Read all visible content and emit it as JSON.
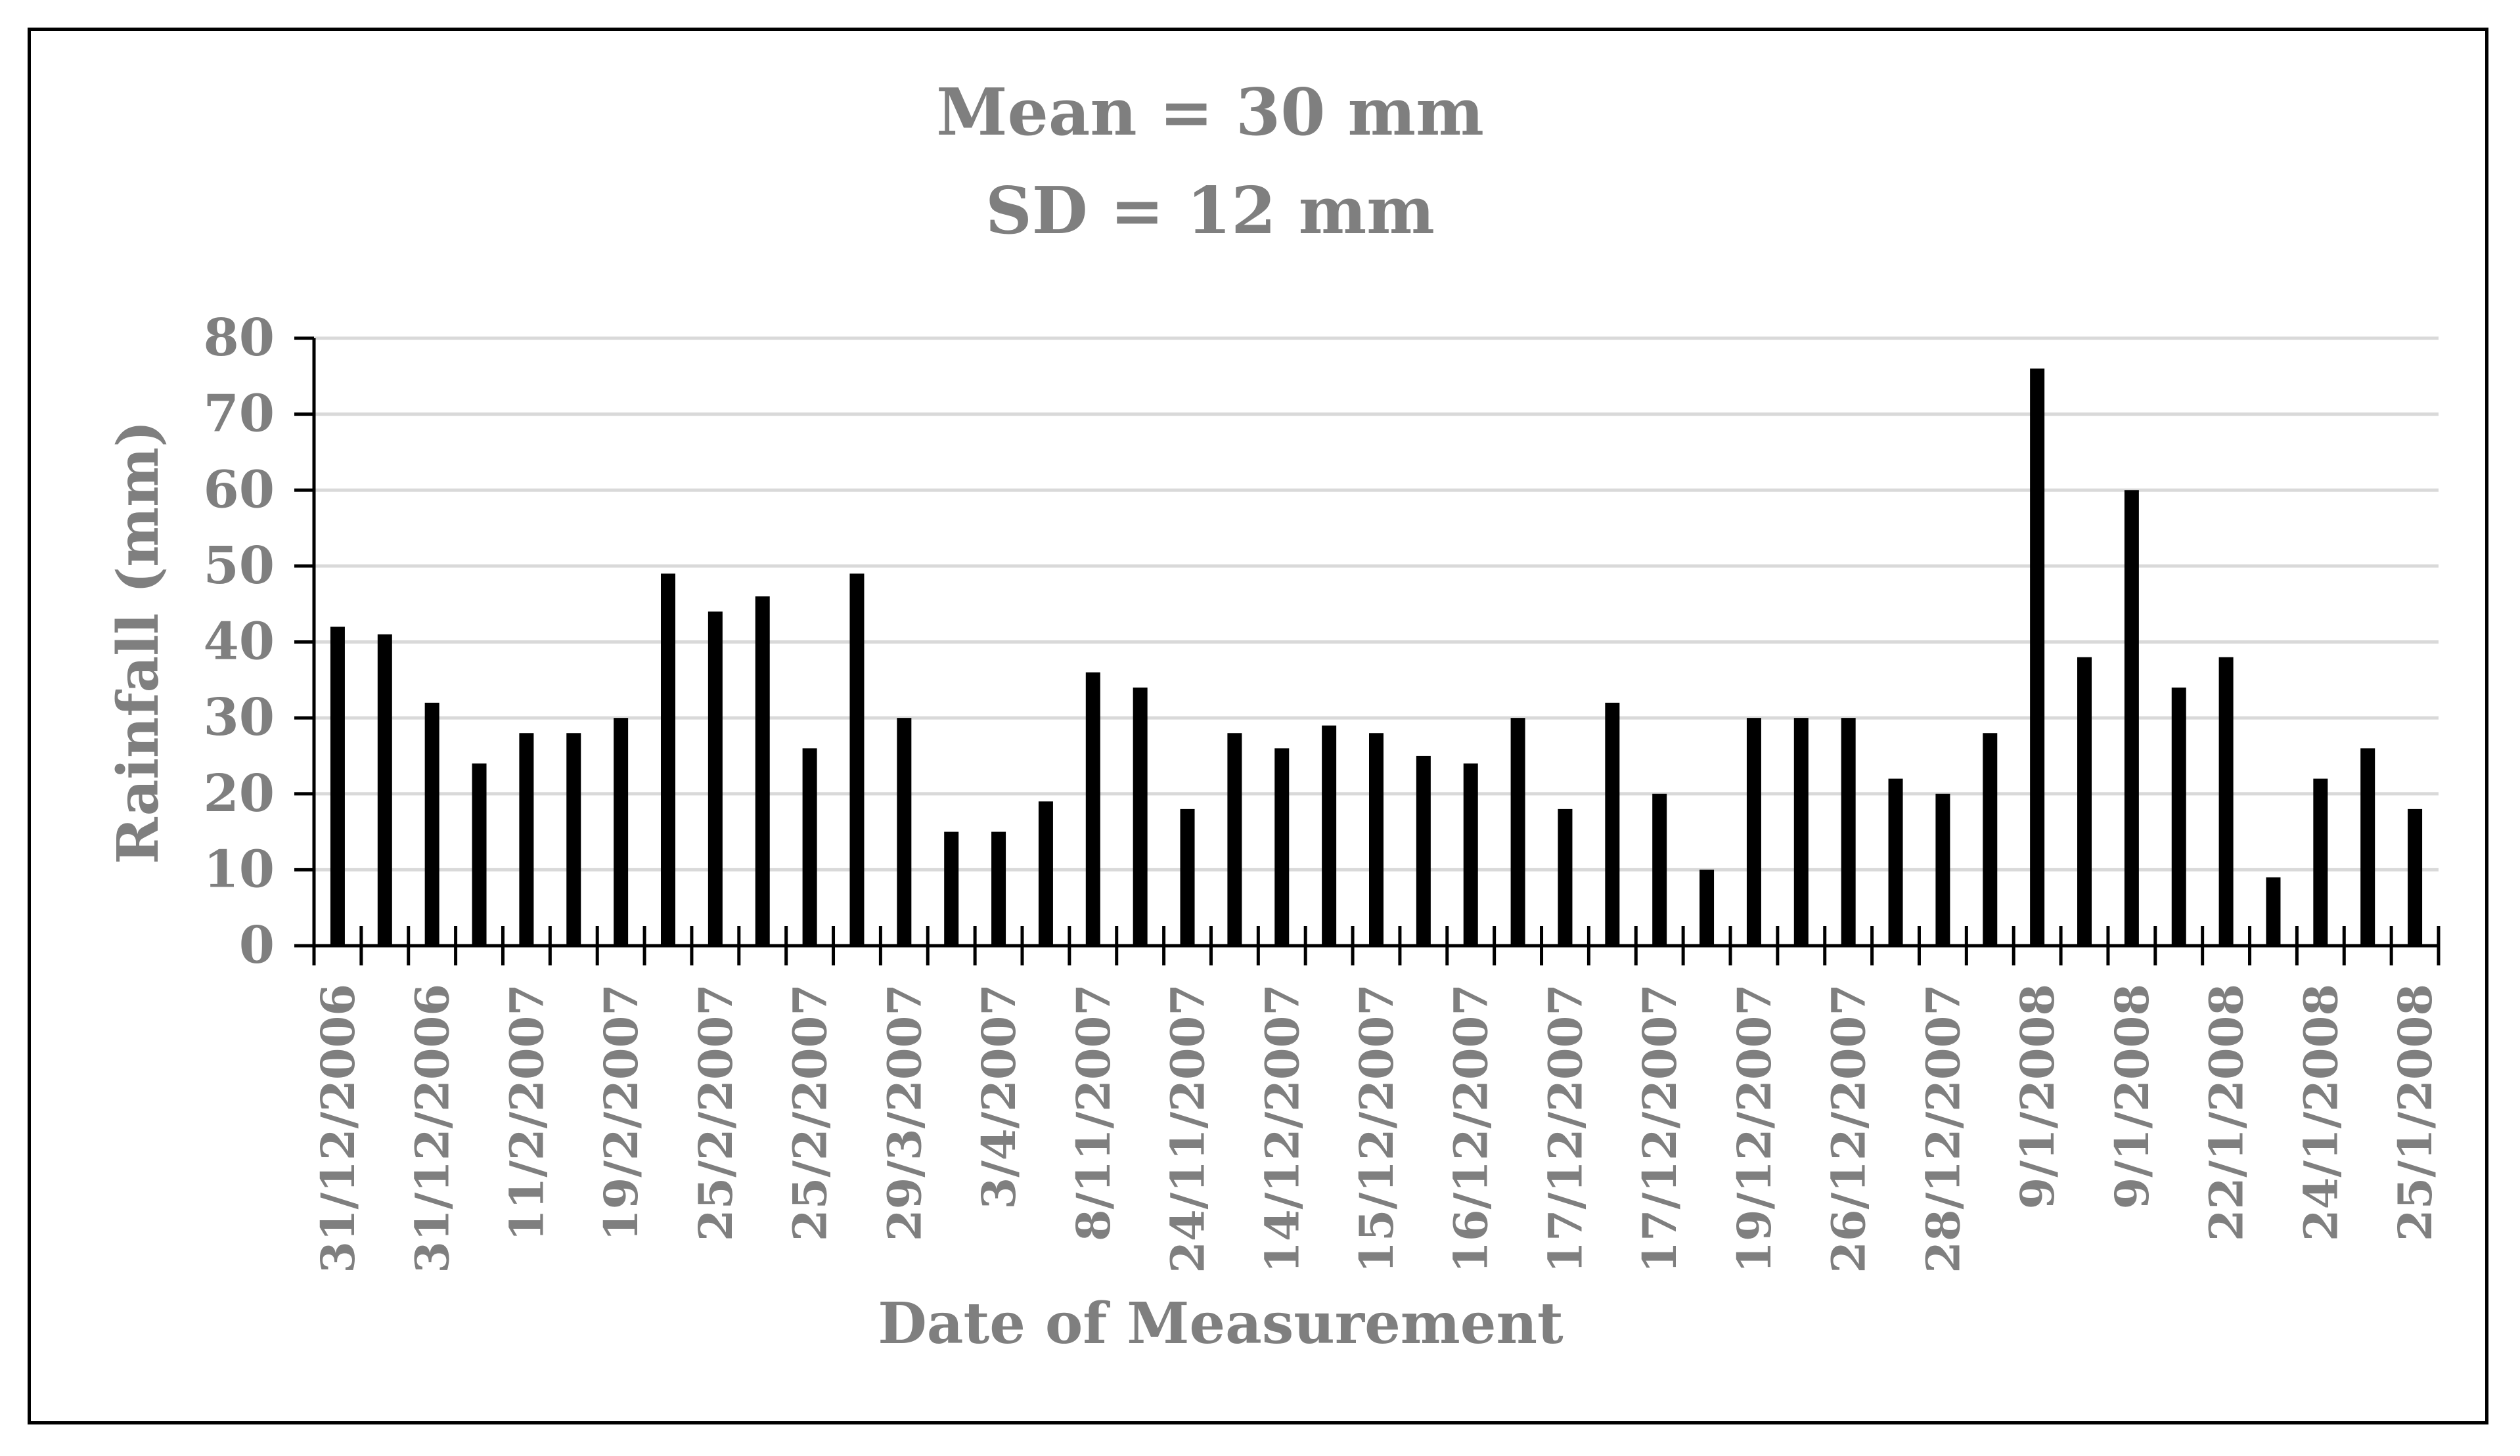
{
  "colors": {
    "bar": "#000000",
    "text": "#7f7f7f",
    "gridline": "#d9d9d9",
    "axis": "#000000",
    "frame": "#000000"
  },
  "chart_data": {
    "type": "bar",
    "title_lines": [
      "Mean = 30 mm",
      "SD = 12 mm"
    ],
    "xlabel": "Date of Measurement",
    "ylabel": "Rainfall (mm)",
    "ylim": [
      0,
      80
    ],
    "yticks": [
      0,
      10,
      20,
      30,
      40,
      50,
      60,
      70,
      80
    ],
    "grid": true,
    "legend": "none",
    "categories": [
      "31/12/2006",
      "",
      "31/12/2006",
      "",
      "11/2/2007",
      "",
      "19/2/2007",
      "",
      "25/2/2007",
      "",
      "25/2/2007",
      "",
      "29/3/2007",
      "",
      "3/4/2007",
      "",
      "8/11/2007",
      "",
      "24/11/2007",
      "",
      "14/12/2007",
      "",
      "15/12/2007",
      "",
      "16/12/2007",
      "",
      "17/12/2007",
      "",
      "17/12/2007",
      "",
      "19/12/2007",
      "",
      "26/12/2007",
      "",
      "28/12/2007",
      "",
      "9/1/2008",
      "",
      "9/1/2008",
      "",
      "22/1/2008",
      "",
      "24/1/2008",
      "",
      "25/1/2008"
    ],
    "values": [
      42,
      41,
      32,
      24,
      28,
      28,
      30,
      49,
      44,
      46,
      26,
      49,
      30,
      15,
      15,
      19,
      36,
      34,
      18,
      28,
      26,
      29,
      28,
      25,
      24,
      30,
      18,
      32,
      20,
      10,
      30,
      30,
      30,
      22,
      20,
      28,
      76,
      38,
      60,
      34,
      38,
      9,
      22,
      26,
      18
    ]
  }
}
